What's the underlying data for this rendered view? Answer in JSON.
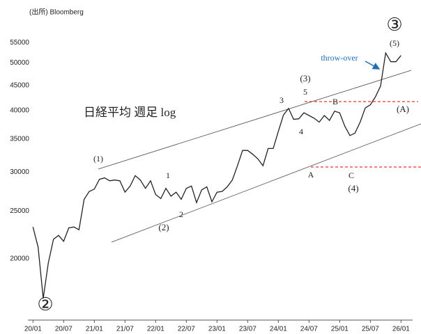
{
  "chart_data": {
    "type": "line",
    "source": "(出所) Bloomberg",
    "title": "日経平均 週足 log",
    "log_scale": true,
    "color": "#222222",
    "x": [
      0,
      1,
      2,
      3,
      4,
      5,
      6,
      7,
      8,
      9,
      10,
      11,
      12,
      13,
      14,
      15,
      16,
      17,
      18,
      19,
      20,
      21,
      22,
      23,
      24,
      25,
      26,
      27,
      28,
      29,
      30,
      31,
      32,
      33,
      34,
      35,
      36,
      37,
      38,
      39,
      40,
      41,
      42,
      43,
      44,
      45,
      46,
      47,
      48,
      49,
      50,
      51,
      52,
      53,
      54,
      55,
      56,
      57,
      58,
      59,
      60,
      61,
      62,
      63,
      64,
      65,
      66,
      67,
      68,
      69,
      70,
      71,
      72
    ],
    "values": [
      23200,
      21100,
      16600,
      19600,
      21900,
      22300,
      21700,
      23100,
      23200,
      22900,
      26400,
      27400,
      27700,
      29000,
      29200,
      28800,
      28900,
      28800,
      27300,
      28100,
      29500,
      28900,
      27800,
      28800,
      27000,
      26500,
      27800,
      26800,
      27300,
      26400,
      27800,
      28100,
      26000,
      27600,
      28000,
      26100,
      27300,
      27400,
      28000,
      28900,
      30900,
      33200,
      33200,
      32600,
      31900,
      30900,
      33500,
      33500,
      36300,
      39200,
      40400,
      38400,
      38500,
      39600,
      39100,
      38600,
      37900,
      39100,
      38200,
      39900,
      39600,
      37200,
      35600,
      36000,
      37900,
      40500,
      41100,
      42700,
      44900,
      52400,
      50300,
      50300,
      51800
    ],
    "xlim": [
      -1,
      74
    ],
    "xticks": [
      {
        "value": 0,
        "label": "20/01"
      },
      {
        "value": 6,
        "label": "20/07"
      },
      {
        "value": 12,
        "label": "21/01"
      },
      {
        "value": 18,
        "label": "21/07"
      },
      {
        "value": 24,
        "label": "22/01"
      },
      {
        "value": 30,
        "label": "22/07"
      },
      {
        "value": 36,
        "label": "23/01"
      },
      {
        "value": 42,
        "label": "23/07"
      },
      {
        "value": 48,
        "label": "24/01"
      },
      {
        "value": 54,
        "label": "24/07"
      },
      {
        "value": 60,
        "label": "25/01"
      },
      {
        "value": 66,
        "label": "25/07"
      },
      {
        "value": 72,
        "label": "26/01"
      }
    ],
    "ylim": [
      15000,
      65000
    ],
    "yticks": [
      20000,
      25000,
      30000,
      35000,
      40000,
      45000,
      50000,
      55000
    ],
    "annotations": [
      "③",
      "(5)",
      "throw-over",
      "(3)",
      "5",
      "3",
      "4",
      "B",
      "(A)",
      "A",
      "C",
      "(4)",
      "(1)",
      "1",
      "2",
      "(2)",
      "②"
    ]
  }
}
